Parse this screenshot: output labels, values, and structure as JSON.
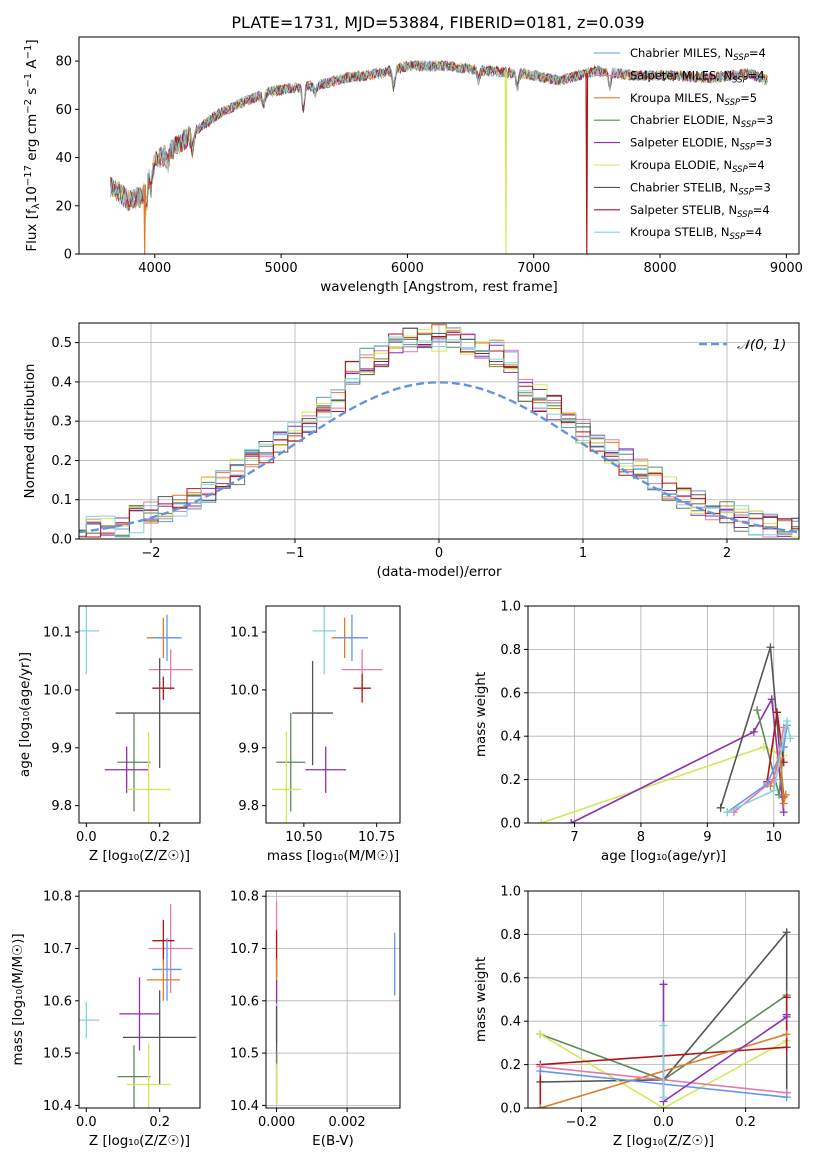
{
  "figure": {
    "title": "PLATE=1731, MJD=53884, FIBERID=0181, z=0.039"
  },
  "colors": {
    "Chabrier MILES": "#6495ed",
    "Salpeter MILES": "#e07cab",
    "Kroupa MILES": "#e07b2a",
    "Chabrier ELODIE": "#5e8a5e",
    "Salpeter ELODIE": "#8e2fb0",
    "Kroupa ELODIE": "#d4e85a",
    "Chabrier STELIB": "#555555",
    "Salpeter STELIB": "#b01515",
    "Kroupa STELIB": "#86d4dc",
    "gauss": "#6495dc"
  },
  "chart_data": [
    {
      "id": "spectrum",
      "type": "line",
      "xlabel": "wavelength [Angstrom, rest frame]",
      "ylabel": "Flux [f_λ 10^-17 erg cm^-2 s^-1 A^-1]",
      "xlim": [
        3400,
        9100
      ],
      "ylim": [
        0,
        90
      ],
      "xticks": [
        4000,
        5000,
        6000,
        7000,
        8000,
        9000
      ],
      "yticks": [
        0,
        20,
        40,
        60,
        80
      ],
      "legend_position": "upper right",
      "legend": [
        {
          "series": "Chabrier MILES",
          "label": "Chabrier MILES, N",
          "sub": "SSP",
          "tail": "=4"
        },
        {
          "series": "Salpeter MILES",
          "label": "Salpeter MILES, N",
          "sub": "SSP",
          "tail": "=4"
        },
        {
          "series": "Kroupa MILES",
          "label": "Kroupa MILES, N",
          "sub": "SSP",
          "tail": "=5"
        },
        {
          "series": "Chabrier ELODIE",
          "label": "Chabrier ELODIE, N",
          "sub": "SSP",
          "tail": "=3"
        },
        {
          "series": "Salpeter ELODIE",
          "label": "Salpeter ELODIE, N",
          "sub": "SSP",
          "tail": "=3"
        },
        {
          "series": "Kroupa ELODIE",
          "label": "Kroupa ELODIE, N",
          "sub": "SSP",
          "tail": "=4"
        },
        {
          "series": "Chabrier STELIB",
          "label": "Chabrier STELIB, N",
          "sub": "SSP",
          "tail": "=3"
        },
        {
          "series": "Salpeter STELIB",
          "label": "Salpeter STELIB, N",
          "sub": "SSP",
          "tail": "=4"
        },
        {
          "series": "Kroupa STELIB",
          "label": "Kroupa STELIB, N",
          "sub": "SSP",
          "tail": "=4"
        }
      ],
      "continuum": [
        [
          3650,
          28
        ],
        [
          3800,
          22
        ],
        [
          3900,
          24
        ],
        [
          3950,
          36
        ],
        [
          4100,
          42
        ],
        [
          4300,
          50
        ],
        [
          4500,
          58
        ],
        [
          4700,
          63
        ],
        [
          4900,
          67
        ],
        [
          5100,
          69
        ],
        [
          5300,
          70
        ],
        [
          5500,
          73
        ],
        [
          5800,
          75
        ],
        [
          6000,
          78
        ],
        [
          6300,
          78
        ],
        [
          6600,
          76
        ],
        [
          6900,
          75
        ],
        [
          7200,
          72
        ],
        [
          7500,
          76
        ],
        [
          7800,
          74
        ],
        [
          8100,
          74
        ],
        [
          8400,
          73
        ],
        [
          8700,
          75
        ],
        [
          8850,
          72
        ]
      ],
      "dropouts": [
        {
          "series": "Kroupa MILES",
          "x": 3920
        },
        {
          "series": "Kroupa ELODIE",
          "x": 6780
        },
        {
          "series": "Salpeter STELIB",
          "x": 7420
        }
      ]
    },
    {
      "id": "residual_hist",
      "type": "histogram",
      "xlabel": "(data-model)/error",
      "ylabel": "Normed distribution",
      "xlim": [
        -2.5,
        2.5
      ],
      "ylim": [
        0,
        0.55
      ],
      "xticks": [
        -2,
        -1,
        0,
        1,
        2
      ],
      "yticks": [
        0.0,
        0.1,
        0.2,
        0.3,
        0.4,
        0.5
      ],
      "bin_width": 0.1,
      "reference": {
        "label": "𝒩(0, 1)",
        "mean": 0,
        "sigma": 1
      },
      "grid": true
    },
    {
      "id": "age_vs_Z",
      "type": "errorbar",
      "xlabel": "Z [log₁₀(Z/Z☉)]",
      "ylabel": "age  [log₁₀(age/yr)]",
      "xlim": [
        -0.02,
        0.31
      ],
      "ylim": [
        9.77,
        10.145
      ],
      "xticks": [
        0.0,
        0.2
      ],
      "yticks": [
        9.8,
        9.9,
        10.0,
        10.1
      ],
      "points": [
        {
          "series": "Kroupa STELIB",
          "x": 0.0,
          "xerr": 0.035,
          "y": 10.102,
          "yerr": 0.075
        },
        {
          "series": "Kroupa MILES",
          "x": 0.21,
          "xerr": 0.045,
          "y": 10.09,
          "yerr": 0.035
        },
        {
          "series": "Chabrier MILES",
          "x": 0.22,
          "xerr": 0.04,
          "y": 10.09,
          "yerr": 0.04
        },
        {
          "series": "Salpeter MILES",
          "x": 0.23,
          "xerr": 0.06,
          "y": 10.035,
          "yerr": 0.035
        },
        {
          "series": "Salpeter STELIB",
          "x": 0.21,
          "xerr": 0.03,
          "y": 10.003,
          "yerr": 0.02
        },
        {
          "series": "Chabrier STELIB",
          "x": 0.2,
          "xerr": 0.12,
          "y": 9.96,
          "yerr": 0.095
        },
        {
          "series": "Chabrier ELODIE",
          "x": 0.13,
          "xerr": 0.045,
          "y": 9.875,
          "yerr": 0.085
        },
        {
          "series": "Salpeter ELODIE",
          "x": 0.11,
          "xerr": 0.06,
          "y": 9.862,
          "yerr": 0.04
        },
        {
          "series": "Kroupa ELODIE",
          "x": 0.17,
          "xerr": 0.06,
          "y": 9.828,
          "yerr": 0.1
        }
      ]
    },
    {
      "id": "age_vs_mass",
      "type": "errorbar",
      "xlabel": "mass [log₁₀(M/M☉)]",
      "ylabel": "",
      "xlim": [
        10.37,
        10.83
      ],
      "ylim": [
        9.77,
        10.145
      ],
      "xticks": [
        10.5,
        10.75
      ],
      "xtick_labels": [
        "10.50",
        "10.75"
      ],
      "yticks": [
        9.8,
        9.9,
        10.0,
        10.1
      ],
      "points": [
        {
          "series": "Kroupa STELIB",
          "x": 10.57,
          "xerr": 0.04,
          "y": 10.102,
          "yerr": 0.075
        },
        {
          "series": "Kroupa MILES",
          "x": 10.64,
          "xerr": 0.045,
          "y": 10.09,
          "yerr": 0.035
        },
        {
          "series": "Chabrier MILES",
          "x": 10.665,
          "xerr": 0.055,
          "y": 10.09,
          "yerr": 0.04
        },
        {
          "series": "Salpeter MILES",
          "x": 10.7,
          "xerr": 0.07,
          "y": 10.035,
          "yerr": 0.035
        },
        {
          "series": "Salpeter STELIB",
          "x": 10.7,
          "xerr": 0.03,
          "y": 10.003,
          "yerr": 0.025
        },
        {
          "series": "Chabrier STELIB",
          "x": 10.53,
          "xerr": 0.07,
          "y": 9.96,
          "yerr": 0.09
        },
        {
          "series": "Chabrier ELODIE",
          "x": 10.455,
          "xerr": 0.05,
          "y": 9.875,
          "yerr": 0.085
        },
        {
          "series": "Salpeter ELODIE",
          "x": 10.575,
          "xerr": 0.07,
          "y": 9.862,
          "yerr": 0.04
        },
        {
          "series": "Kroupa ELODIE",
          "x": 10.44,
          "xerr": 0.05,
          "y": 9.828,
          "yerr": 0.1
        }
      ]
    },
    {
      "id": "weight_vs_age",
      "type": "line",
      "xlabel": "age  [log₁₀(age/yr)]",
      "ylabel": "mass weight",
      "xlim": [
        6.3,
        10.38
      ],
      "ylim": [
        0,
        1.0
      ],
      "xticks": [
        7,
        8,
        9,
        10
      ],
      "yticks": [
        0.0,
        0.2,
        0.4,
        0.6,
        0.8,
        1.0
      ],
      "grid": true,
      "series": [
        {
          "name": "Kroupa ELODIE",
          "x": [
            6.5,
            9.85,
            10.0,
            10.15
          ],
          "y": [
            0.0,
            0.35,
            0.33,
            0.31
          ]
        },
        {
          "name": "Salpeter ELODIE",
          "x": [
            6.95,
            9.7,
            9.97,
            10.15
          ],
          "y": [
            0.0,
            0.42,
            0.57,
            0.05
          ]
        },
        {
          "name": "Chabrier STELIB",
          "x": [
            9.2,
            9.95,
            10.15
          ],
          "y": [
            0.07,
            0.81,
            0.12
          ]
        },
        {
          "name": "Chabrier ELODIE",
          "x": [
            9.75,
            10.08,
            10.15
          ],
          "y": [
            0.52,
            0.13,
            0.35
          ]
        },
        {
          "name": "Salpeter STELIB",
          "x": [
            9.9,
            10.05,
            10.15
          ],
          "y": [
            0.19,
            0.51,
            0.28
          ]
        },
        {
          "name": "Kroupa MILES",
          "x": [
            9.95,
            10.1,
            10.15,
            10.18
          ],
          "y": [
            0.17,
            0.3,
            0.09,
            0.13
          ]
        },
        {
          "name": "Chabrier MILES",
          "x": [
            9.3,
            9.9,
            10.15,
            10.2
          ],
          "y": [
            0.05,
            0.18,
            0.35,
            0.45
          ]
        },
        {
          "name": "Salpeter MILES",
          "x": [
            9.4,
            10.0,
            10.15
          ],
          "y": [
            0.05,
            0.2,
            0.44
          ]
        },
        {
          "name": "Kroupa STELIB",
          "x": [
            9.3,
            10.0,
            10.2,
            10.25
          ],
          "y": [
            0.05,
            0.15,
            0.47,
            0.39
          ]
        }
      ]
    },
    {
      "id": "mass_vs_Z",
      "type": "errorbar",
      "xlabel": "Z [log₁₀(Z/Z☉)]",
      "ylabel": "mass [log₁₀(M/M☉)]",
      "xlim": [
        -0.02,
        0.31
      ],
      "ylim": [
        10.395,
        10.81
      ],
      "xticks": [
        0.0,
        0.2
      ],
      "yticks": [
        10.4,
        10.5,
        10.6,
        10.7,
        10.8
      ],
      "points": [
        {
          "series": "Kroupa STELIB",
          "x": 0.0,
          "xerr": 0.035,
          "y": 10.563,
          "yerr": 0.035
        },
        {
          "series": "Salpeter MILES",
          "x": 0.23,
          "xerr": 0.06,
          "y": 10.7,
          "yerr": 0.085
        },
        {
          "series": "Salpeter STELIB",
          "x": 0.21,
          "xerr": 0.03,
          "y": 10.715,
          "yerr": 0.04
        },
        {
          "series": "Chabrier MILES",
          "x": 0.22,
          "xerr": 0.04,
          "y": 10.66,
          "yerr": 0.06
        },
        {
          "series": "Kroupa MILES",
          "x": 0.21,
          "xerr": 0.045,
          "y": 10.64,
          "yerr": 0.04
        },
        {
          "series": "Salpeter ELODIE",
          "x": 0.145,
          "xerr": 0.055,
          "y": 10.575,
          "yerr": 0.07
        },
        {
          "series": "Chabrier STELIB",
          "x": 0.2,
          "xerr": 0.1,
          "y": 10.53,
          "yerr": 0.09
        },
        {
          "series": "Chabrier ELODIE",
          "x": 0.13,
          "xerr": 0.045,
          "y": 10.455,
          "yerr": 0.06
        },
        {
          "series": "Kroupa ELODIE",
          "x": 0.17,
          "xerr": 0.06,
          "y": 10.44,
          "yerr": 0.08
        }
      ]
    },
    {
      "id": "mass_vs_EBV",
      "type": "errorbar",
      "xlabel": "E(B-V)",
      "ylabel": "",
      "xlim": [
        -0.0003,
        0.0035
      ],
      "ylim": [
        10.395,
        10.81
      ],
      "xticks": [
        0.0,
        0.002
      ],
      "xtick_labels": [
        "0.000",
        "0.002"
      ],
      "yticks": [
        10.4,
        10.5,
        10.6,
        10.7,
        10.8
      ],
      "grid": true,
      "points": [
        {
          "series": "Salpeter MILES",
          "x": 0.0,
          "xerr": 0.0,
          "y": 10.72,
          "yerr": 0.07
        },
        {
          "series": "Salpeter STELIB",
          "x": 0.0,
          "xerr": 0.0,
          "y": 10.69,
          "yerr": 0.045
        },
        {
          "series": "Kroupa MILES",
          "x": 0.0,
          "xerr": 0.0,
          "y": 10.64,
          "yerr": 0.04
        },
        {
          "series": "Salpeter ELODIE",
          "x": 0.0,
          "xerr": 0.0,
          "y": 10.58,
          "yerr": 0.06
        },
        {
          "series": "Kroupa STELIB",
          "x": 0.0,
          "xerr": 0.0,
          "y": 10.56,
          "yerr": 0.035
        },
        {
          "series": "Chabrier STELIB",
          "x": 0.0,
          "xerr": 0.0,
          "y": 10.53,
          "yerr": 0.06
        },
        {
          "series": "Chabrier ELODIE",
          "x": 0.0,
          "xerr": 0.0,
          "y": 10.455,
          "yerr": 0.05
        },
        {
          "series": "Kroupa ELODIE",
          "x": 0.0,
          "xerr": 0.0,
          "y": 10.44,
          "yerr": 0.04
        },
        {
          "series": "Chabrier MILES",
          "x": 0.00335,
          "xerr": 0.0,
          "y": 10.67,
          "yerr": 0.06
        }
      ]
    },
    {
      "id": "weight_vs_Z",
      "type": "line",
      "xlabel": "Z [log₁₀(Z/Z☉)]",
      "ylabel": "mass weight",
      "xlim": [
        -0.33,
        0.33
      ],
      "ylim": [
        0,
        1.0
      ],
      "xticks": [
        -0.2,
        0.0,
        0.2
      ],
      "xtick_labels": [
        "−0.2",
        "0.0",
        "0.2"
      ],
      "yticks": [
        0.0,
        0.2,
        0.4,
        0.6,
        0.8,
        1.0
      ],
      "grid": true,
      "series": [
        {
          "name": "Chabrier STELIB",
          "x": [
            -0.3,
            0.0,
            0.3,
            0.3
          ],
          "y": [
            0.12,
            0.13,
            0.81,
            0.07
          ]
        },
        {
          "name": "Chabrier ELODIE",
          "x": [
            -0.3,
            0.0,
            0.3
          ],
          "y": [
            0.34,
            0.13,
            0.52
          ]
        },
        {
          "name": "Kroupa ELODIE",
          "x": [
            -0.3,
            0.0,
            0.3
          ],
          "y": [
            0.34,
            0.0,
            0.31
          ]
        },
        {
          "name": "Salpeter STELIB",
          "x": [
            -0.3,
            -0.3,
            0.3,
            0.3
          ],
          "y": [
            0.0,
            0.2,
            0.28,
            0.51
          ]
        },
        {
          "name": "Kroupa MILES",
          "x": [
            -0.3,
            0.3
          ],
          "y": [
            0.0,
            0.34
          ]
        },
        {
          "name": "Salpeter MILES",
          "x": [
            -0.3,
            0.3
          ],
          "y": [
            0.19,
            0.07
          ]
        },
        {
          "name": "Chabrier MILES",
          "x": [
            -0.3,
            0.3
          ],
          "y": [
            0.17,
            0.05
          ]
        },
        {
          "name": "Salpeter ELODIE",
          "x": [
            0.0,
            0.0,
            0.3,
            0.3
          ],
          "y": [
            0.57,
            0.03,
            0.42,
            0.43
          ]
        },
        {
          "name": "Kroupa STELIB",
          "x": [
            0.0,
            0.0
          ],
          "y": [
            0.38,
            0.05
          ]
        }
      ]
    }
  ]
}
